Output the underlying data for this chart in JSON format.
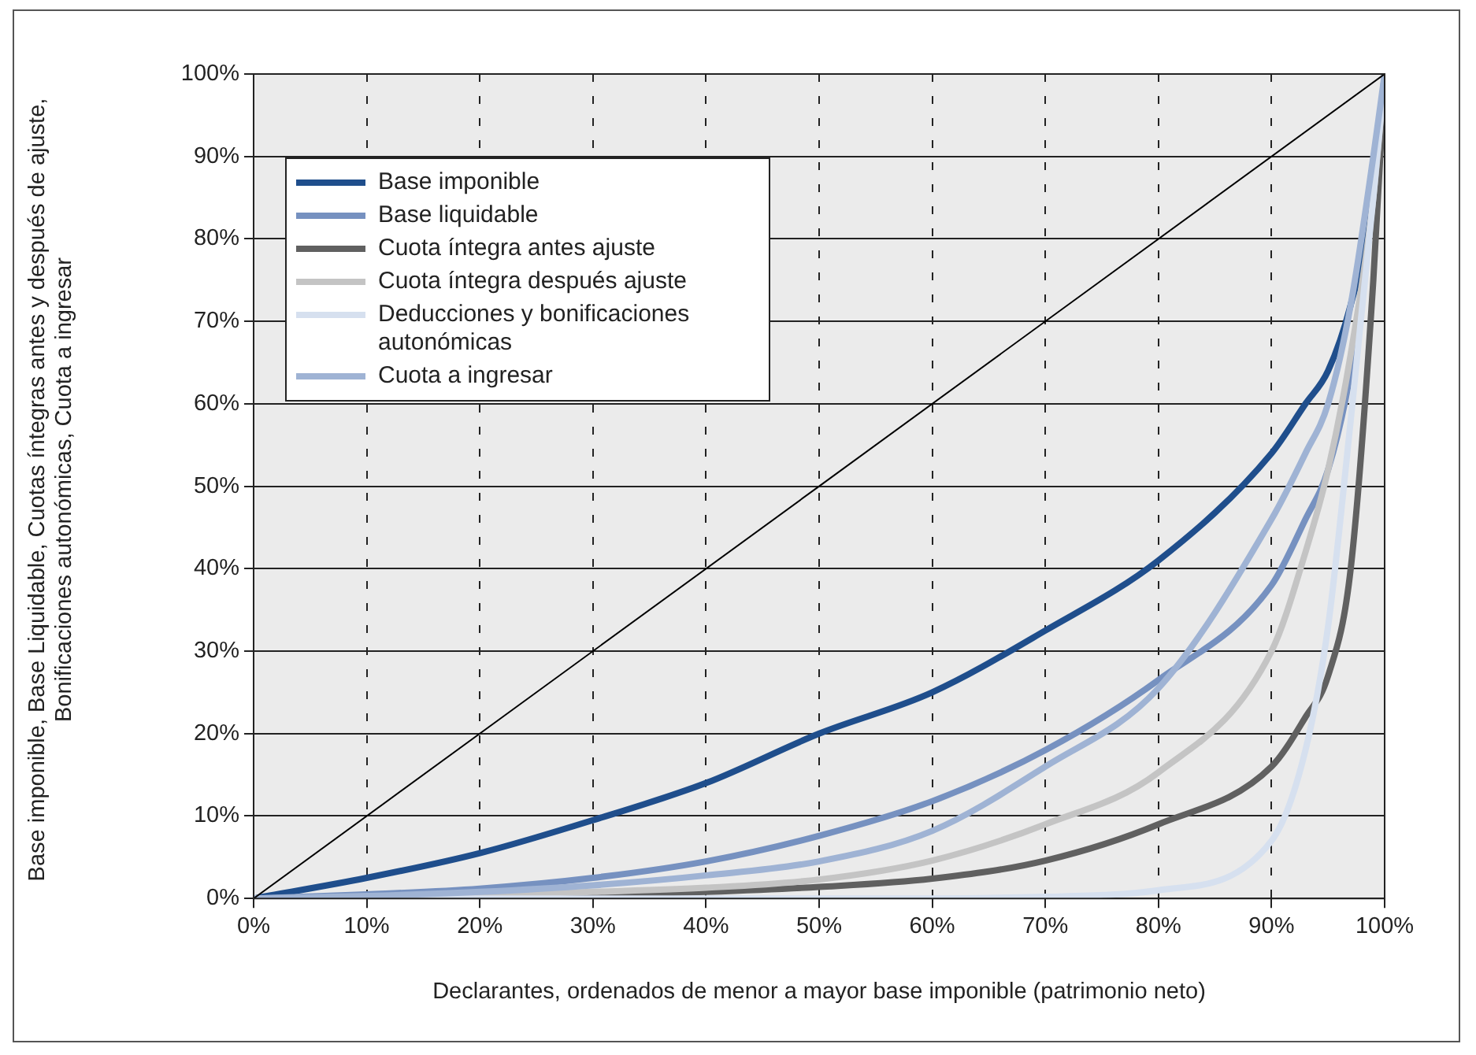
{
  "chart_data": {
    "type": "line",
    "xlabel": "Declarantes, ordenados de menor a mayor base imponible (patrimonio neto)",
    "ylabel": "Base imponible, Base Liquidable, Cuotas íntegras antes y después de ajuste, Bonificaciones autonómicas, Cuota a ingresar",
    "xlim": [
      0,
      100
    ],
    "xticks": [
      {
        "value": 0,
        "label": "0%"
      },
      {
        "value": 10,
        "label": "10%"
      },
      {
        "value": 20,
        "label": "20%"
      },
      {
        "value": 30,
        "label": "30%"
      },
      {
        "value": 40,
        "label": "40%"
      },
      {
        "value": 50,
        "label": "50%"
      },
      {
        "value": 60,
        "label": "60%"
      },
      {
        "value": 70,
        "label": "70%"
      },
      {
        "value": 80,
        "label": "80%"
      },
      {
        "value": 90,
        "label": "90%"
      },
      {
        "value": 100,
        "label": "100%"
      }
    ],
    "ylim": [
      0,
      100
    ],
    "yticks": [
      {
        "value": 0,
        "label": "0%"
      },
      {
        "value": 10,
        "label": "10%"
      },
      {
        "value": 20,
        "label": "20%"
      },
      {
        "value": 30,
        "label": "30%"
      },
      {
        "value": 40,
        "label": "40%"
      },
      {
        "value": 50,
        "label": "50%"
      },
      {
        "value": 60,
        "label": "60%"
      },
      {
        "value": 70,
        "label": "70%"
      },
      {
        "value": 80,
        "label": "80%"
      },
      {
        "value": 90,
        "label": "90%"
      },
      {
        "value": 100,
        "label": "100%"
      }
    ],
    "grid": true,
    "legend": "top left",
    "marker": "none",
    "line_style": "solid",
    "series": [
      {
        "name": "Base imponible",
        "color": "#1f4e8c",
        "x": [
          0,
          10,
          20,
          30,
          40,
          50,
          60,
          70,
          80,
          90,
          93,
          95,
          97,
          99,
          100
        ],
        "values": [
          0,
          2.5,
          5.5,
          9.5,
          14,
          20,
          25,
          32.5,
          41,
          54,
          60,
          64,
          72,
          85,
          100
        ]
      },
      {
        "name": "Base liquidable",
        "color": "#7691c0",
        "x": [
          0,
          10,
          20,
          30,
          40,
          50,
          60,
          70,
          80,
          90,
          93,
          95,
          97,
          99,
          100
        ],
        "values": [
          0,
          0.5,
          1.2,
          2.5,
          4.5,
          7.6,
          11.8,
          18,
          26.5,
          38,
          46,
          52,
          64,
          85,
          100
        ]
      },
      {
        "name": "Cuota íntegra antes ajuste",
        "color": "#606060",
        "x": [
          0,
          10,
          20,
          30,
          40,
          50,
          60,
          70,
          80,
          90,
          93,
          95,
          97,
          99,
          100
        ],
        "values": [
          0,
          0.1,
          0.2,
          0.4,
          0.8,
          1.4,
          2.4,
          4.6,
          9,
          16,
          22,
          27,
          40,
          75,
          100
        ]
      },
      {
        "name": "Cuota íntegra después ajuste",
        "color": "#c4c4c4",
        "x": [
          0,
          10,
          20,
          30,
          40,
          50,
          60,
          70,
          80,
          90,
          93,
          95,
          97,
          99,
          100
        ],
        "values": [
          0,
          0.2,
          0.4,
          0.8,
          1.3,
          2.3,
          4.6,
          9,
          15.3,
          30,
          42,
          52,
          66,
          85,
          100
        ]
      },
      {
        "name": "Deducciones y bonificaciones autonómicas",
        "color": "#d6e0ef",
        "x": [
          0,
          10,
          20,
          30,
          40,
          50,
          60,
          70,
          80,
          90,
          93,
          95,
          97,
          99,
          100
        ],
        "values": [
          0,
          0,
          0,
          0,
          0,
          0,
          0,
          0.2,
          1,
          7,
          18,
          33,
          58,
          85,
          100
        ]
      },
      {
        "name": "Cuota a ingresar",
        "color": "#9fb3d4",
        "x": [
          0,
          10,
          20,
          30,
          40,
          50,
          60,
          70,
          80,
          90,
          93,
          95,
          97,
          99,
          100
        ],
        "values": [
          0,
          0.3,
          0.8,
          1.6,
          2.8,
          4.5,
          8.2,
          16,
          25.5,
          46,
          54,
          60,
          72,
          90,
          100
        ]
      },
      {
        "color": "#000000",
        "x": [
          0,
          100
        ],
        "values": [
          0,
          100
        ]
      }
    ]
  }
}
